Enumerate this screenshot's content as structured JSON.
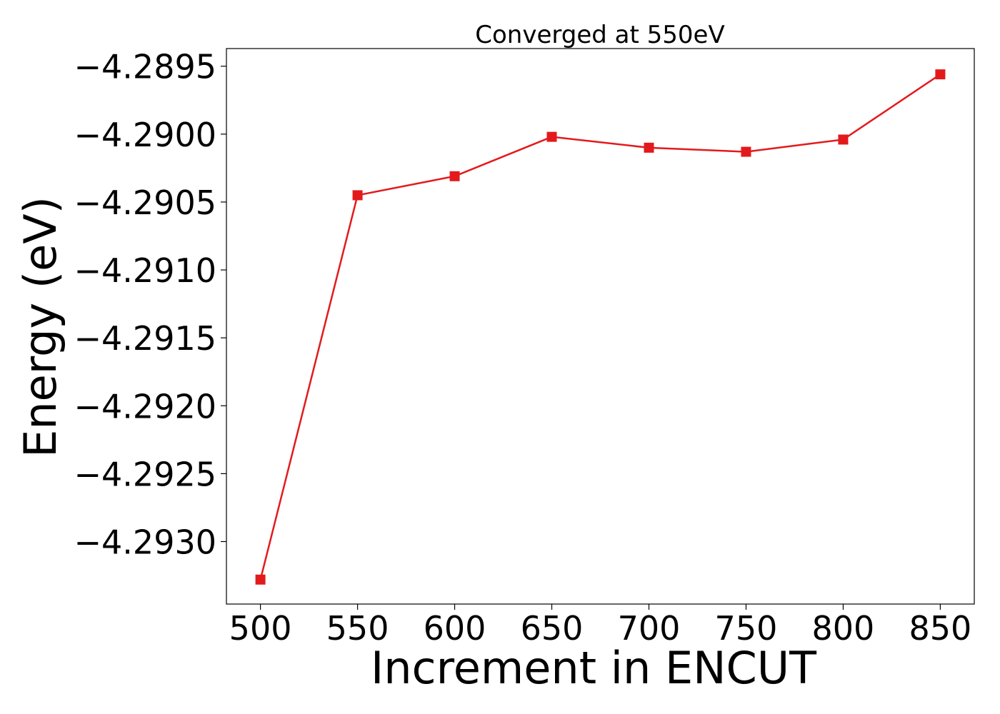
{
  "chart_data": {
    "type": "line",
    "title": "Converged at 550eV",
    "xlabel": "Increment in ENCUT",
    "ylabel": "Energy (eV)",
    "x": [
      500,
      550,
      600,
      650,
      700,
      750,
      800,
      850
    ],
    "series": [
      {
        "values": [
          -4.29328,
          -4.29045,
          -4.29031,
          -4.29002,
          -4.2901,
          -4.29013,
          -4.29004,
          -4.28956
        ],
        "color": "#e31a1c",
        "marker": "square"
      }
    ],
    "xticks": [
      500,
      550,
      600,
      650,
      700,
      750,
      800,
      850
    ],
    "xtick_labels": [
      "500",
      "550",
      "600",
      "650",
      "700",
      "750",
      "800",
      "850"
    ],
    "yticks": [
      -4.293,
      -4.2925,
      -4.292,
      -4.2915,
      -4.291,
      -4.2905,
      -4.29,
      -4.2895
    ],
    "ytick_labels": [
      "−4.2930",
      "−4.2925",
      "−4.2920",
      "−4.2915",
      "−4.2910",
      "−4.2905",
      "−4.2900",
      "−4.2895"
    ],
    "xlim": [
      482.5,
      867.5
    ],
    "ylim": [
      -4.29346,
      -4.28937
    ],
    "grid": false
  }
}
